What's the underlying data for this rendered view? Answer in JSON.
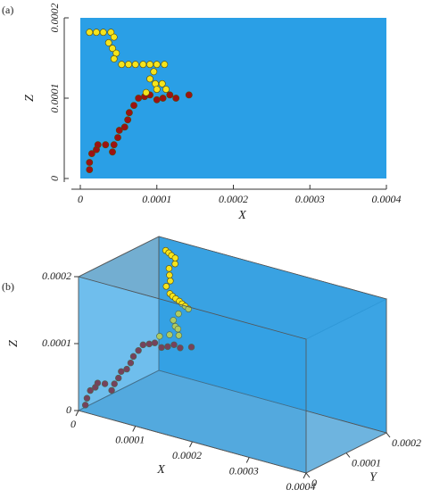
{
  "chart_data": [
    {
      "type": "scatter",
      "label": "(a)",
      "x_label": "X",
      "y_label": "Z",
      "background": "#2a9fe6",
      "xlim": [
        0,
        0.0004
      ],
      "ylim": [
        0,
        0.0002
      ],
      "xticks": [
        0,
        0.0001,
        0.0002,
        0.0003,
        0.0004
      ],
      "yticks": [
        0,
        0.0001,
        0.0002
      ],
      "series": [
        {
          "color": "#9e1212",
          "x": [
            1.2e-05,
            1.2e-05,
            1.5e-05,
            2.1e-05,
            2.3e-05,
            3.3e-05,
            4.2e-05,
            4.4e-05,
            4.9e-05,
            5.1e-05,
            5.8e-05,
            6.2e-05,
            6.4e-05,
            7e-05,
            7.6e-05,
            8.4e-05,
            9.1e-05,
            0.0001,
            0.000108,
            0.000117,
            0.000125,
            0.000142
          ],
          "values": [
            1.1e-05,
            2e-05,
            3.1e-05,
            3.6e-05,
            4.2e-05,
            4.2e-05,
            3.3e-05,
            4.2e-05,
            5.1e-05,
            6e-05,
            6.4e-05,
            7.3e-05,
            8.2e-05,
            9.1e-05,
            0.0001,
            0.000102,
            0.000104,
            9.8e-05,
            0.0001,
            0.000104,
            0.0001,
            0.000104
          ]
        },
        {
          "color": "#f5e41c",
          "x": [
            1.2e-05,
            2.1e-05,
            3e-05,
            4e-05,
            4.4e-05,
            3.7e-05,
            4.2e-05,
            4.7e-05,
            4.4e-05,
            5.4e-05,
            6.3e-05,
            7.2e-05,
            8.2e-05,
            9.1e-05,
            0.0001,
            0.00011,
            9.6e-05,
            9.1e-05,
            9.8e-05,
            0.000107,
            0.000112,
            0.0001,
            8.6e-05
          ],
          "values": [
            0.000182,
            0.000182,
            0.000182,
            0.000182,
            0.000176,
            0.000169,
            0.000162,
            0.000156,
            0.000149,
            0.000142,
            0.000142,
            0.000142,
            0.000142,
            0.000142,
            0.000142,
            0.000142,
            0.000133,
            0.000124,
            0.000118,
            0.000118,
            0.000111,
            0.000111,
            0.000107
          ]
        }
      ]
    },
    {
      "type": "scatter3d",
      "label": "(b)",
      "x_label": "X",
      "y_label": "Y",
      "z_label": "Z",
      "background": "#2a9fe6",
      "xlim": [
        0,
        0.0004
      ],
      "ylim": [
        0,
        0.0002
      ],
      "zlim": [
        0,
        0.0002
      ],
      "xticks": [
        0,
        0.0001,
        0.0002,
        0.0003,
        0.0004
      ],
      "yticks": [
        0,
        0.0001,
        0.0002
      ],
      "zticks": [
        0,
        0.0001,
        0.0002
      ],
      "series": [
        {
          "color": "#9e1212",
          "x": [
            1.2e-05,
            1.2e-05,
            1.5e-05,
            2.1e-05,
            2.3e-05,
            3.3e-05,
            4.2e-05,
            4.4e-05,
            4.9e-05,
            5.1e-05,
            5.8e-05,
            6.2e-05,
            6.4e-05,
            7e-05,
            7.6e-05,
            8.4e-05,
            9.1e-05,
            0.0001,
            0.000108,
            0.000117,
            0.000125,
            0.000142
          ],
          "y": [
            0,
            4e-06,
            8e-06,
            1.2e-05,
            1.5e-05,
            1.9e-05,
            2.3e-05,
            2.7e-05,
            3e-05,
            3.4e-05,
            3.8e-05,
            4.2e-05,
            4.6e-05,
            5e-05,
            5.3e-05,
            5.7e-05,
            6.1e-05,
            6.5e-05,
            6.9e-05,
            7.2e-05,
            7.6e-05,
            8e-05
          ],
          "z": [
            1.1e-05,
            2e-05,
            3.1e-05,
            3.6e-05,
            4.2e-05,
            4.2e-05,
            3.3e-05,
            4.2e-05,
            5.1e-05,
            6e-05,
            6.4e-05,
            7.3e-05,
            8.2e-05,
            9.1e-05,
            0.0001,
            0.000102,
            0.000104,
            9.8e-05,
            0.0001,
            0.000104,
            0.0001,
            0.000104
          ]
        },
        {
          "color": "#f5e41c",
          "x": [
            1.2e-05,
            2.1e-05,
            3e-05,
            4e-05,
            4.4e-05,
            3.7e-05,
            4.2e-05,
            4.7e-05,
            4.4e-05,
            5.4e-05,
            6.3e-05,
            7.2e-05,
            8.2e-05,
            9.1e-05,
            0.0001,
            0.00011,
            9.6e-05,
            9.1e-05,
            9.8e-05,
            0.000107,
            0.000112,
            0.0001,
            8.6e-05
          ],
          "y": [
            0.0002,
            0.000195,
            0.000189,
            0.000184,
            0.000178,
            0.000173,
            0.000167,
            0.000162,
            0.000156,
            0.000151,
            0.000145,
            0.00014,
            0.000135,
            0.000129,
            0.000124,
            0.000118,
            0.000113,
            0.000107,
            0.000102,
            9.6e-05,
            9.1e-05,
            8.5e-05,
            8e-05
          ],
          "z": [
            0.000182,
            0.000182,
            0.000182,
            0.000182,
            0.000176,
            0.000169,
            0.000162,
            0.000156,
            0.000149,
            0.000142,
            0.000142,
            0.000142,
            0.000142,
            0.000142,
            0.000142,
            0.000142,
            0.000133,
            0.000124,
            0.000118,
            0.000118,
            0.000111,
            0.000111,
            0.000107
          ]
        }
      ]
    }
  ]
}
